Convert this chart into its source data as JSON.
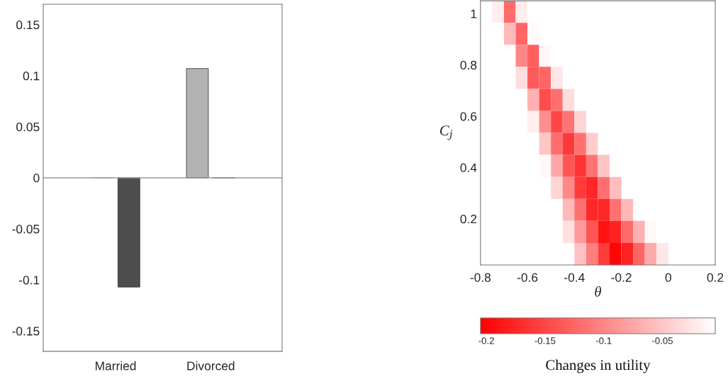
{
  "chart_data": [
    {
      "type": "bar",
      "categories": [
        "Married",
        "Divorced"
      ],
      "series": [
        {
          "color": "#b3b3b3",
          "values": [
            0,
            0.107
          ]
        },
        {
          "color": "#4d4d4d",
          "values": [
            -0.107,
            0
          ]
        }
      ],
      "ylim": [
        -0.17,
        0.17
      ],
      "yticks": [
        -0.15,
        -0.1,
        -0.05,
        0,
        0.05,
        0.1,
        0.15
      ],
      "ref_lines": [
        {
          "axis": "y",
          "value": 0,
          "color": "#999999"
        }
      ],
      "grid": false,
      "legend": false
    },
    {
      "type": "heatmap",
      "xlabel": "θ",
      "ylabel": "C$_{j}$",
      "clabel": "Changes in utility",
      "xlim": [
        -0.8,
        0.2
      ],
      "ylim": [
        0.02,
        1.05
      ],
      "xticks": [
        -0.8,
        -0.6,
        -0.4,
        -0.2,
        0,
        0.2
      ],
      "yticks": [
        0.2,
        0.4,
        0.6,
        0.8,
        {
          "value": 1,
          "label": "1"
        }
      ],
      "clim": [
        -0.205,
        -0.005
      ],
      "cticks": [
        -0.2,
        -0.15,
        -0.1,
        -0.05
      ],
      "colors": [
        "#ff0000",
        "#ffffff"
      ],
      "cells": [
        [
          null,
          -0.02,
          -0.12,
          -0.02,
          null,
          null,
          null,
          null,
          null,
          null,
          null,
          null,
          null,
          null,
          null,
          null,
          null,
          null,
          null,
          null
        ],
        [
          null,
          null,
          -0.06,
          -0.125,
          -0.01,
          null,
          null,
          null,
          null,
          null,
          null,
          null,
          null,
          null,
          null,
          null,
          null,
          null,
          null,
          null
        ],
        [
          null,
          null,
          null,
          -0.1,
          -0.13,
          -0.012,
          null,
          null,
          null,
          null,
          null,
          null,
          null,
          null,
          null,
          null,
          null,
          null,
          null,
          null
        ],
        [
          null,
          null,
          null,
          -0.032,
          -0.134,
          -0.126,
          -0.024,
          null,
          null,
          null,
          null,
          null,
          null,
          null,
          null,
          null,
          null,
          null,
          null,
          null
        ],
        [
          null,
          null,
          null,
          null,
          -0.067,
          -0.145,
          -0.119,
          -0.033,
          null,
          null,
          null,
          null,
          null,
          null,
          null,
          null,
          null,
          null,
          null,
          null
        ],
        [
          null,
          null,
          null,
          null,
          -0.018,
          -0.094,
          -0.15,
          -0.115,
          -0.039,
          null,
          null,
          null,
          null,
          null,
          null,
          null,
          null,
          null,
          null,
          null
        ],
        [
          null,
          null,
          null,
          null,
          null,
          -0.05,
          -0.12,
          -0.16,
          -0.116,
          -0.046,
          null,
          null,
          null,
          null,
          null,
          null,
          null,
          null,
          null,
          null
        ],
        [
          null,
          null,
          null,
          null,
          null,
          -0.01,
          -0.074,
          -0.138,
          -0.165,
          -0.115,
          -0.051,
          -0.008,
          null,
          null,
          null,
          null,
          null,
          null,
          null,
          null
        ],
        [
          null,
          null,
          null,
          null,
          null,
          null,
          -0.039,
          -0.098,
          -0.159,
          -0.175,
          -0.118,
          -0.057,
          null,
          null,
          null,
          null,
          null,
          null,
          null,
          null
        ],
        [
          null,
          null,
          null,
          null,
          null,
          null,
          null,
          -0.061,
          -0.117,
          -0.174,
          -0.174,
          -0.117,
          -0.061,
          null,
          null,
          null,
          null,
          null,
          null,
          null
        ],
        [
          null,
          null,
          null,
          null,
          null,
          null,
          null,
          -0.03,
          -0.084,
          -0.139,
          -0.19,
          -0.177,
          -0.122,
          -0.067,
          -0.011,
          null,
          null,
          null,
          null,
          null
        ],
        [
          null,
          null,
          null,
          null,
          null,
          null,
          null,
          null,
          -0.054,
          -0.106,
          -0.158,
          -0.2,
          -0.178,
          -0.126,
          -0.072,
          -0.024,
          null,
          null,
          null,
          null
        ]
      ]
    }
  ]
}
